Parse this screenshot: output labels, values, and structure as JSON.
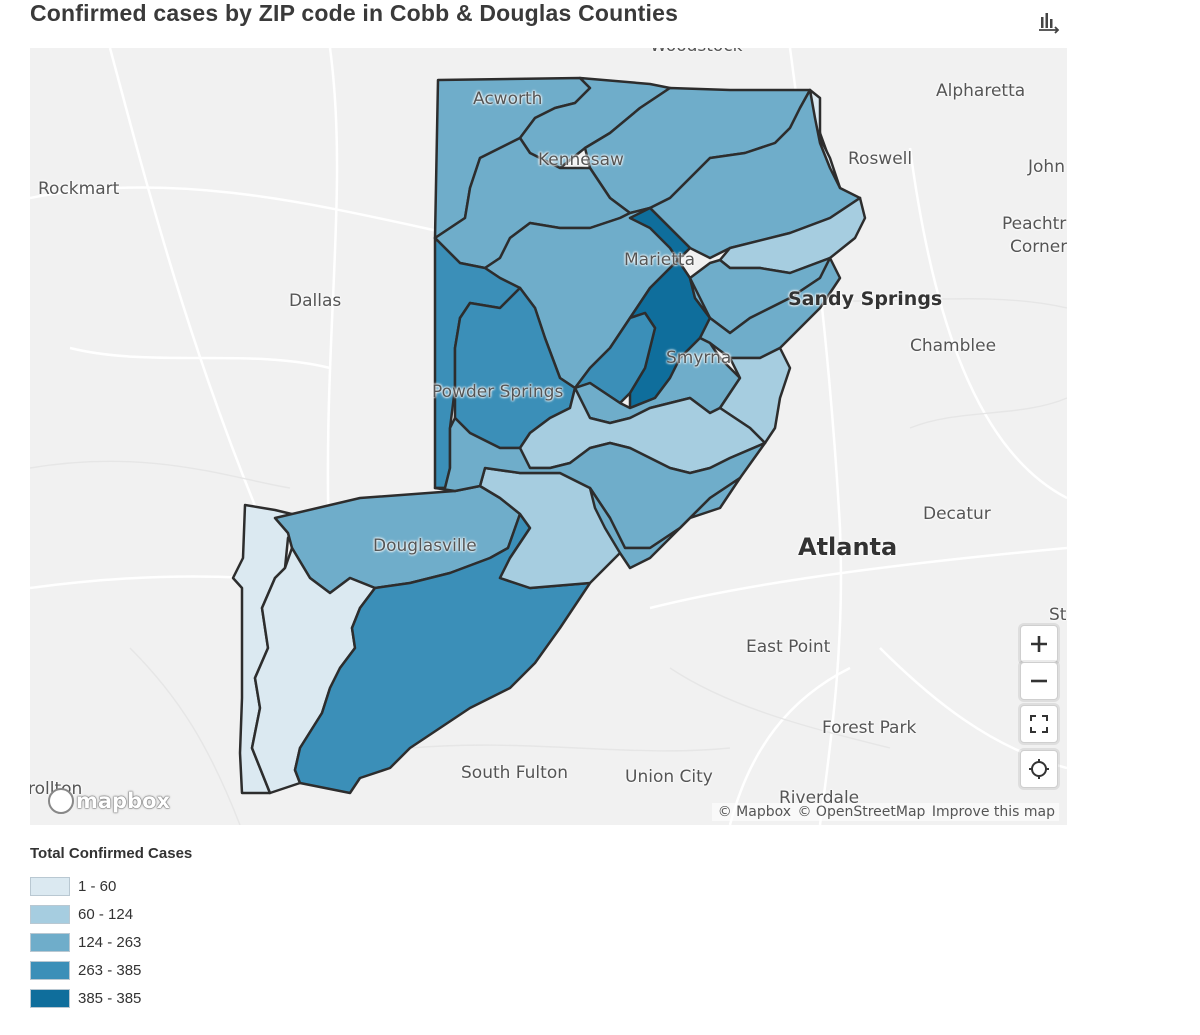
{
  "title": "Confirmed cases by ZIP code in Cobb & Douglas Counties",
  "legend": {
    "title": "Total Confirmed Cases",
    "items": [
      {
        "label": "1 - 60",
        "color": "#dbe9f1"
      },
      {
        "label": "60 - 124",
        "color": "#a6cde0"
      },
      {
        "label": "124 - 263",
        "color": "#6fadca"
      },
      {
        "label": "263 - 385",
        "color": "#3b8fb8"
      },
      {
        "label": "385 - 385",
        "color": "#0f6e9c"
      }
    ]
  },
  "places": {
    "woodstock": "Woodstock",
    "alpharetta": "Alpharetta",
    "acworth": "Acworth",
    "kennesaw": "Kennesaw",
    "roswell": "Roswell",
    "johns": "John",
    "rockmart": "Rockmart",
    "peachtree": "Peachtr",
    "corners": "Corner",
    "marietta": "Marietta",
    "dallas": "Dallas",
    "sandy_springs": "Sandy Springs",
    "chamblee": "Chamblee",
    "smyrna": "Smyrna",
    "powder_springs": "Powder Springs",
    "decatur": "Decatur",
    "douglasville": "Douglasville",
    "atlanta": "Atlanta",
    "st": "St",
    "east_point": "East Point",
    "forest_park": "Forest Park",
    "south_fulton": "South Fulton",
    "union_city": "Union City",
    "riverdale": "Riverdale",
    "carrollton": "rollton"
  },
  "controls": {
    "zoom_in": "zoom-in",
    "zoom_out": "zoom-out",
    "fullscreen": "fullscreen",
    "geolocate": "geolocate"
  },
  "brand": {
    "logo_text": "mapbox"
  },
  "attribution": {
    "mapbox": "© Mapbox",
    "osm": "© OpenStreetMap",
    "improve": "Improve this map"
  }
}
